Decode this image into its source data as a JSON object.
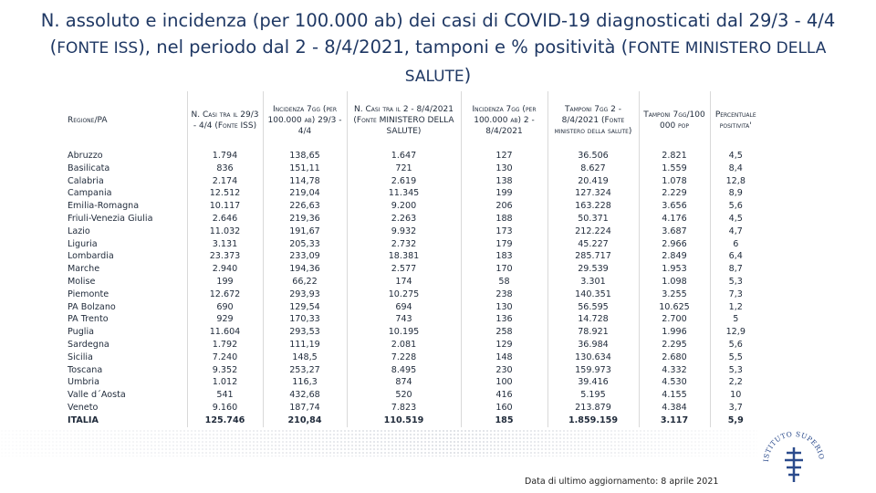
{
  "header": {
    "title": [
      "N. assoluto e incidenza (per 100.000 ab) dei casi di COVID-19 diagnosticati dal 29/3 - 4/4 (",
      "FONTE ISS",
      "), nel periodo dal 2 - 8/4/2021, tamponi e % positività (",
      "FONTE MINISTERO DELLA SALUTE",
      ")"
    ]
  },
  "table": {
    "columns": [
      "Regione/PA",
      "N. Casi tra il 29/3 - 4/4 (Fonte ISS)",
      "Incidenza 7gg (per 100.000 ab) 29/3 - 4/4",
      "N. Casi tra il 2 - 8/4/2021 (Fonte MINISTERO DELLA SALUTE)",
      "Incidenza 7gg (per 100.000 ab) 2 - 8/4/2021",
      "Tamponi 7gg 2 - 8/4/2021 (Fonte ministero della salute)",
      "Tamponi 7gg/100 000 pop",
      "Percentuale positivita'"
    ],
    "rows": [
      [
        "Abruzzo",
        "1.794",
        "138,65",
        "1.647",
        "127",
        "36.506",
        "2.821",
        "4,5"
      ],
      [
        "Basilicata",
        "836",
        "151,11",
        "721",
        "130",
        "8.627",
        "1.559",
        "8,4"
      ],
      [
        "Calabria",
        "2.174",
        "114,78",
        "2.619",
        "138",
        "20.419",
        "1.078",
        "12,8"
      ],
      [
        "Campania",
        "12.512",
        "219,04",
        "11.345",
        "199",
        "127.324",
        "2.229",
        "8,9"
      ],
      [
        "Emilia-Romagna",
        "10.117",
        "226,63",
        "9.200",
        "206",
        "163.228",
        "3.656",
        "5,6"
      ],
      [
        "Friuli-Venezia Giulia",
        "2.646",
        "219,36",
        "2.263",
        "188",
        "50.371",
        "4.176",
        "4,5"
      ],
      [
        "Lazio",
        "11.032",
        "191,67",
        "9.932",
        "173",
        "212.224",
        "3.687",
        "4,7"
      ],
      [
        "Liguria",
        "3.131",
        "205,33",
        "2.732",
        "179",
        "45.227",
        "2.966",
        "6"
      ],
      [
        "Lombardia",
        "23.373",
        "233,09",
        "18.381",
        "183",
        "285.717",
        "2.849",
        "6,4"
      ],
      [
        "Marche",
        "2.940",
        "194,36",
        "2.577",
        "170",
        "29.539",
        "1.953",
        "8,7"
      ],
      [
        "Molise",
        "199",
        "66,22",
        "174",
        "58",
        "3.301",
        "1.098",
        "5,3"
      ],
      [
        "Piemonte",
        "12.672",
        "293,93",
        "10.275",
        "238",
        "140.351",
        "3.255",
        "7,3"
      ],
      [
        "PA Bolzano",
        "690",
        "129,54",
        "694",
        "130",
        "56.595",
        "10.625",
        "1,2"
      ],
      [
        "PA Trento",
        "929",
        "170,33",
        "743",
        "136",
        "14.728",
        "2.700",
        "5"
      ],
      [
        "Puglia",
        "11.604",
        "293,53",
        "10.195",
        "258",
        "78.921",
        "1.996",
        "12,9"
      ],
      [
        "Sardegna",
        "1.792",
        "111,19",
        "2.081",
        "129",
        "36.984",
        "2.295",
        "5,6"
      ],
      [
        "Sicilia",
        "7.240",
        "148,5",
        "7.228",
        "148",
        "130.634",
        "2.680",
        "5,5"
      ],
      [
        "Toscana",
        "9.352",
        "253,27",
        "8.495",
        "230",
        "159.973",
        "4.332",
        "5,3"
      ],
      [
        "Umbria",
        "1.012",
        "116,3",
        "874",
        "100",
        "39.416",
        "4.530",
        "2,2"
      ],
      [
        "Valle d´Aosta",
        "541",
        "432,68",
        "520",
        "416",
        "5.195",
        "4.155",
        "10"
      ],
      [
        "Veneto",
        "9.160",
        "187,74",
        "7.823",
        "160",
        "213.879",
        "4.384",
        "3,7"
      ],
      [
        "ITALIA",
        "125.746",
        "210,84",
        "110.519",
        "185",
        "1.859.159",
        "3.117",
        "5,9"
      ]
    ]
  },
  "footer": {
    "update": "Data di ultimo aggiornamento: 8 aprile 2021",
    "logo": "ISTITUTO SUPERIORE DI SANITÀ"
  }
}
